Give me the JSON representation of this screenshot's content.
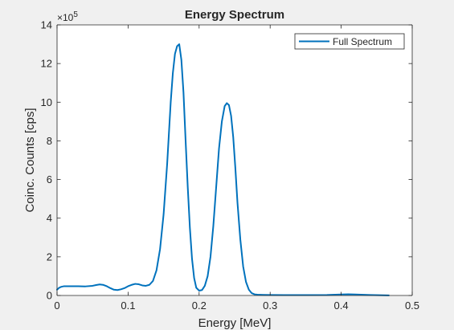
{
  "chart_data": {
    "type": "line",
    "title": "Energy Spectrum",
    "xlabel": "Energy [MeV]",
    "ylabel": "Coinc. Counts [cps]",
    "xlim": [
      0,
      0.5
    ],
    "ylim": [
      0,
      1400000
    ],
    "xticks": [
      0,
      0.1,
      0.2,
      0.3,
      0.4,
      0.5
    ],
    "xtick_labels": [
      "0",
      "0.1",
      "0.2",
      "0.3",
      "0.4",
      "0.5"
    ],
    "yticks": [
      0,
      200000,
      400000,
      600000,
      800000,
      1000000,
      1200000,
      1400000
    ],
    "ytick_labels": [
      "0",
      "2",
      "4",
      "6",
      "8",
      "10",
      "12",
      "14"
    ],
    "y_exponent_base": "×10",
    "y_exponent_power": "5",
    "grid": false,
    "legend_position": "top-right",
    "series": [
      {
        "name": "Full Spectrum",
        "color": "#0072bd",
        "x": [
          0,
          0.003,
          0.006,
          0.01,
          0.02,
          0.03,
          0.04,
          0.05,
          0.055,
          0.06,
          0.065,
          0.07,
          0.075,
          0.08,
          0.085,
          0.09,
          0.095,
          0.1,
          0.105,
          0.11,
          0.115,
          0.12,
          0.125,
          0.13,
          0.135,
          0.14,
          0.145,
          0.15,
          0.155,
          0.16,
          0.163,
          0.166,
          0.169,
          0.172,
          0.175,
          0.178,
          0.181,
          0.184,
          0.187,
          0.19,
          0.193,
          0.196,
          0.2,
          0.204,
          0.208,
          0.212,
          0.216,
          0.22,
          0.224,
          0.228,
          0.232,
          0.236,
          0.239,
          0.242,
          0.245,
          0.248,
          0.251,
          0.254,
          0.258,
          0.262,
          0.266,
          0.27,
          0.274,
          0.278,
          0.282,
          0.29,
          0.3,
          0.32,
          0.35,
          0.38,
          0.4,
          0.41,
          0.42,
          0.44,
          0.46,
          0.467
        ],
        "y": [
          30000,
          40000,
          45000,
          48000,
          48000,
          48000,
          47000,
          50000,
          54000,
          57000,
          55000,
          48000,
          38000,
          30000,
          28000,
          32000,
          38000,
          48000,
          55000,
          60000,
          58000,
          52000,
          50000,
          55000,
          75000,
          130000,
          240000,
          420000,
          680000,
          1000000,
          1150000,
          1250000,
          1290000,
          1300000,
          1220000,
          1050000,
          800000,
          560000,
          350000,
          190000,
          90000,
          40000,
          25000,
          28000,
          50000,
          100000,
          200000,
          360000,
          560000,
          760000,
          900000,
          980000,
          995000,
          985000,
          930000,
          820000,
          660000,
          480000,
          290000,
          150000,
          70000,
          30000,
          12000,
          6000,
          4000,
          3000,
          2500,
          2200,
          2200,
          2500,
          5000,
          6000,
          5000,
          2500,
          1000,
          500
        ]
      }
    ]
  }
}
